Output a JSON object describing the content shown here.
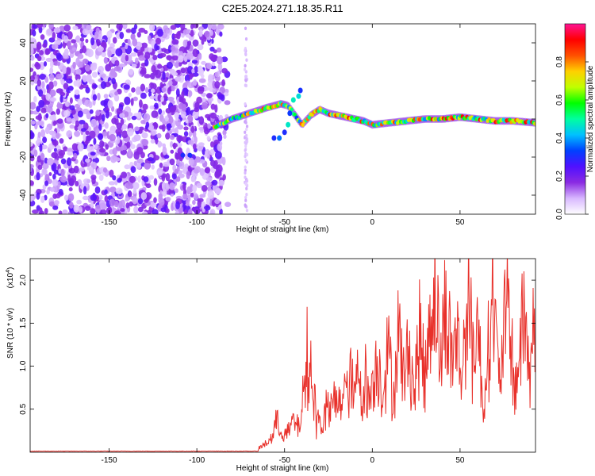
{
  "chart_data": [
    {
      "type": "heatmap",
      "title": "C2E5.2024.271.18.35.R11",
      "xlabel": "Height of straight line (km)",
      "ylabel": "Frequency (Hz)",
      "xlim": [
        -195,
        93
      ],
      "ylim": [
        -50,
        50
      ],
      "xticks": [
        -150,
        -100,
        -50,
        0,
        50
      ],
      "xtick_labels": [
        "-150",
        "-100",
        "-50",
        "0",
        "50"
      ],
      "yticks": [
        -40,
        -20,
        0,
        20,
        40
      ],
      "ytick_labels": [
        "-40",
        "-20",
        "0",
        "20",
        "40"
      ],
      "noise_region_km": [
        -195,
        -88
      ],
      "sparse_column_km": -72,
      "ridge": {
        "x_km": [
          -90,
          -80,
          -70,
          -60,
          -52,
          -48,
          -44,
          -40,
          -35,
          -30,
          -25,
          -20,
          -15,
          -10,
          -5,
          0,
          10,
          20,
          30,
          40,
          50,
          60,
          70,
          80,
          93
        ],
        "freq_hz": [
          -4,
          0,
          3,
          6,
          8,
          7,
          2,
          -3,
          2,
          5,
          3,
          2,
          1,
          0,
          -1,
          -3,
          -2,
          -1,
          0,
          0,
          1,
          0,
          -1,
          -1,
          -2
        ]
      },
      "colorbar": {
        "label": "Normalized spectral amplitude",
        "range": [
          0,
          1
        ],
        "ticks": [
          0.0,
          0.2,
          0.4,
          0.6,
          0.8
        ],
        "tick_labels": [
          "0.0",
          "0.2",
          "0.4",
          "0.6",
          "0.8"
        ],
        "colormap": [
          "#ffffff",
          "#d8b8ff",
          "#8a2be2",
          "#5010ff",
          "#0040ff",
          "#00c0ff",
          "#00ffa0",
          "#00ff00",
          "#c0ff00",
          "#ffd000",
          "#ff5000",
          "#ff0000",
          "#ff1493"
        ]
      }
    },
    {
      "type": "line",
      "xlabel": "Height of straight line (km)",
      "ylabel": "SNR (10 * v/v)",
      "multiplier_label": "(x10",
      "multiplier_exp": "4",
      "multiplier_close": ")",
      "xlim": [
        -195,
        93
      ],
      "ylim": [
        0,
        2.25
      ],
      "xticks": [
        -150,
        -100,
        -50,
        0,
        50
      ],
      "xtick_labels": [
        "-150",
        "-100",
        "-50",
        "0",
        "50"
      ],
      "yticks": [
        0.5,
        1.0,
        1.5,
        2.0
      ],
      "ytick_labels": [
        "0.5",
        "1.0",
        "1.5",
        "2.0"
      ],
      "series": [
        {
          "name": "SNR",
          "color": "#e8302a",
          "x": [
            -195,
            -150,
            -100,
            -75,
            -65,
            -60,
            -57,
            -55,
            -52,
            -50,
            -47,
            -45,
            -42,
            -40,
            -38,
            -37,
            -36,
            -35,
            -34,
            -33,
            -32,
            -30,
            -28,
            -26,
            -24,
            -22,
            -20,
            -18,
            -16,
            -14,
            -12,
            -10,
            -8,
            -6,
            -4,
            -2,
            0,
            3,
            6,
            9,
            12,
            15,
            18,
            21,
            24,
            27,
            30,
            33,
            36,
            39,
            42,
            45,
            48,
            51,
            54,
            57,
            60,
            63,
            66,
            69,
            72,
            75,
            78,
            81,
            84,
            87,
            90,
            93
          ],
          "y": [
            0.01,
            0.01,
            0.01,
            0.02,
            0.05,
            0.12,
            0.2,
            0.38,
            0.3,
            0.22,
            0.28,
            0.42,
            0.3,
            0.6,
            0.9,
            1.28,
            0.75,
            1.45,
            0.55,
            0.8,
            0.35,
            0.5,
            0.3,
            0.62,
            0.45,
            0.7,
            0.55,
            0.68,
            0.9,
            0.7,
            1.0,
            0.62,
            1.12,
            0.75,
            0.95,
            0.65,
            0.9,
            1.2,
            0.8,
            1.35,
            0.7,
            1.6,
            0.9,
            1.4,
            0.75,
            1.55,
            0.95,
            1.8,
            2.22,
            1.1,
            2.0,
            1.2,
            1.55,
            0.9,
            2.05,
            1.3,
            1.75,
            0.55,
            1.35,
            2.1,
            0.85,
            1.55,
            1.8,
            0.75,
            1.3,
            1.85,
            0.9,
            2.1
          ]
        }
      ]
    }
  ]
}
